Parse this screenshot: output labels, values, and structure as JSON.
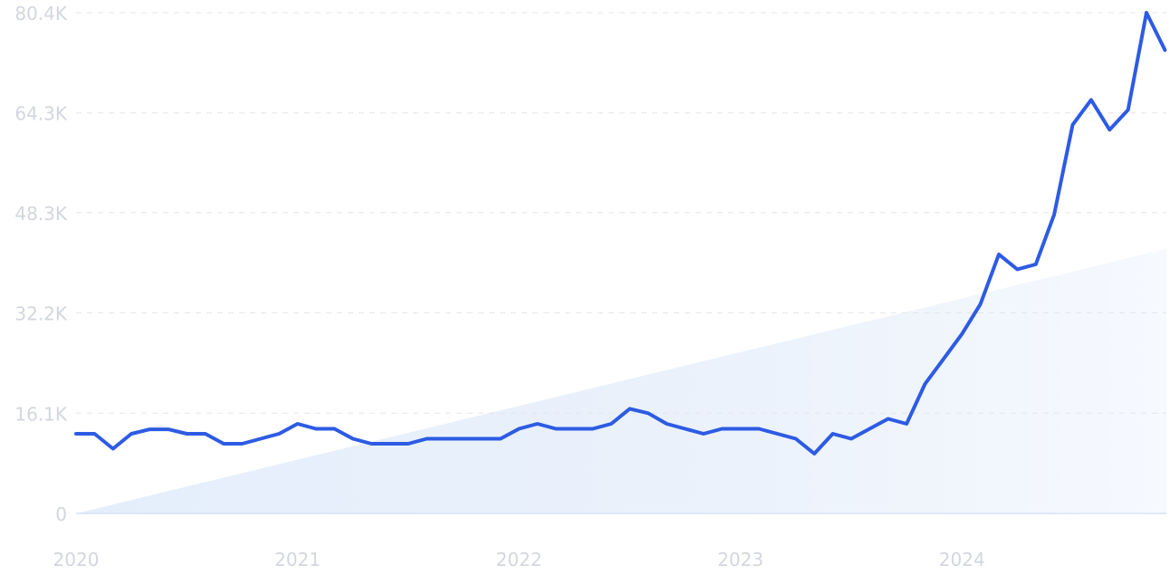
{
  "chart_data": {
    "type": "line",
    "title": "",
    "xlabel": "",
    "ylabel": "",
    "ylim": [
      0,
      80400
    ],
    "y_ticks": [
      {
        "value": 0,
        "label": "0"
      },
      {
        "value": 16100,
        "label": "16.1K"
      },
      {
        "value": 32200,
        "label": "32.2K"
      },
      {
        "value": 48300,
        "label": "48.3K"
      },
      {
        "value": 64300,
        "label": "64.3K"
      },
      {
        "value": 80400,
        "label": "80.4K"
      }
    ],
    "x_ticks": [
      "2020",
      "2021",
      "2022",
      "2023",
      "2024"
    ],
    "x_start_year": 2020,
    "grid": true,
    "colors": {
      "line": "#2d5be3",
      "trend_fill": "#e4eefb",
      "grid": "#e3e6ec",
      "tick_text": "#d3d6de"
    },
    "trend_line": {
      "start": 0,
      "end": 42500
    },
    "series": [
      {
        "values": [
          12800,
          12800,
          10400,
          12800,
          13500,
          13500,
          12800,
          12800,
          11200,
          11200,
          12000,
          12800,
          14400,
          13600,
          13600,
          12000,
          11200,
          11200,
          11200,
          12000,
          12000,
          12000,
          12000,
          12000,
          13600,
          14400,
          13600,
          13600,
          13600,
          14400,
          16800,
          16100,
          14400,
          13600,
          12800,
          13600,
          13600,
          13600,
          12800,
          12000,
          9600,
          12800,
          12000,
          13600,
          15200,
          14400,
          20800,
          24800,
          28800,
          33600,
          41600,
          39200,
          40000,
          48000,
          62400,
          66400,
          61600,
          64800,
          80400,
          74400
        ]
      }
    ]
  }
}
